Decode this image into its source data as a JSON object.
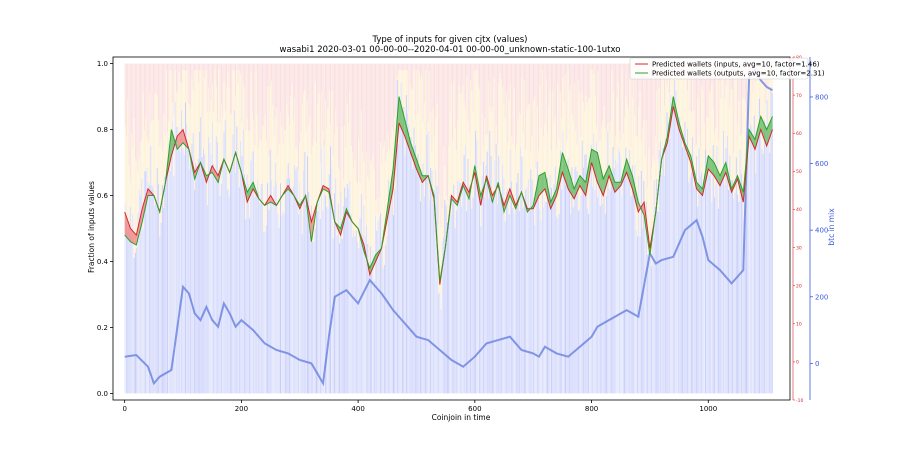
{
  "chart_data": {
    "type": "line",
    "title": "Type of inputs for given cjtx (values)",
    "subtitle": "wasabi1 2020-03-01 00-00-00--2020-04-01 00-00-00_unknown-static-100-1utxo",
    "xlabel": "Coinjoin in time",
    "ylabel": "Fraction of inputs values",
    "y2label": "btc in mix",
    "xlim": [
      -20,
      1140
    ],
    "ylim": [
      -0.02,
      1.02
    ],
    "y2lim": [
      -110,
      920
    ],
    "y3lim": [
      -10,
      80
    ],
    "x_ticks": [
      0,
      200,
      400,
      600,
      800,
      1000
    ],
    "y_ticks": [
      0.0,
      0.2,
      0.4,
      0.6,
      0.8,
      1.0
    ],
    "y2_ticks": [
      0,
      200,
      400,
      600,
      800
    ],
    "y3_ticks": [
      -10,
      0,
      10,
      20,
      30,
      40,
      50,
      60,
      70,
      80
    ],
    "legend_position": "top-right",
    "grid": false,
    "colors": {
      "inputs": "#d62728",
      "outputs": "#2ca02c",
      "btc": "#6f86e0",
      "fill_red": "#f08080",
      "fill_green": "#5cb85c",
      "bar_blue": "#9aa6f5",
      "bar_pink": "#f7c6c6",
      "bar_yellow": "#fbe3b0",
      "right_axis": "#d62728",
      "y2_axis": "#3b5bdb"
    },
    "series": [
      {
        "name": "Predicted wallets (inputs, avg=10, factor=1.46)",
        "x": [
          0,
          10,
          20,
          30,
          40,
          50,
          60,
          70,
          80,
          90,
          100,
          110,
          120,
          130,
          140,
          150,
          160,
          170,
          180,
          190,
          200,
          210,
          220,
          230,
          240,
          250,
          260,
          270,
          280,
          290,
          300,
          310,
          320,
          330,
          340,
          350,
          360,
          370,
          380,
          390,
          400,
          410,
          420,
          430,
          440,
          450,
          460,
          470,
          480,
          490,
          500,
          510,
          520,
          530,
          540,
          550,
          560,
          570,
          580,
          590,
          600,
          610,
          620,
          630,
          640,
          650,
          660,
          670,
          680,
          690,
          700,
          710,
          720,
          730,
          740,
          750,
          760,
          770,
          780,
          790,
          800,
          810,
          820,
          830,
          840,
          850,
          860,
          870,
          880,
          890,
          900,
          910,
          920,
          930,
          940,
          950,
          960,
          970,
          980,
          990,
          1000,
          1010,
          1020,
          1030,
          1040,
          1050,
          1060,
          1070,
          1080,
          1090,
          1100,
          1110
        ],
        "values": [
          0.55,
          0.5,
          0.48,
          0.56,
          0.62,
          0.6,
          0.55,
          0.64,
          0.72,
          0.78,
          0.8,
          0.74,
          0.67,
          0.7,
          0.64,
          0.69,
          0.66,
          0.71,
          0.67,
          0.73,
          0.67,
          0.58,
          0.62,
          0.59,
          0.57,
          0.6,
          0.57,
          0.6,
          0.63,
          0.6,
          0.56,
          0.6,
          0.52,
          0.58,
          0.63,
          0.62,
          0.52,
          0.48,
          0.55,
          0.52,
          0.5,
          0.45,
          0.36,
          0.4,
          0.44,
          0.53,
          0.62,
          0.82,
          0.78,
          0.73,
          0.68,
          0.64,
          0.66,
          0.59,
          0.33,
          0.45,
          0.6,
          0.58,
          0.64,
          0.61,
          0.67,
          0.57,
          0.66,
          0.6,
          0.63,
          0.57,
          0.62,
          0.57,
          0.61,
          0.56,
          0.56,
          0.6,
          0.62,
          0.56,
          0.6,
          0.67,
          0.62,
          0.59,
          0.63,
          0.6,
          0.7,
          0.64,
          0.6,
          0.66,
          0.61,
          0.63,
          0.67,
          0.62,
          0.55,
          0.58,
          0.44,
          0.55,
          0.71,
          0.76,
          0.87,
          0.8,
          0.75,
          0.7,
          0.62,
          0.6,
          0.68,
          0.66,
          0.63,
          0.67,
          0.61,
          0.65,
          0.58,
          0.78,
          0.74,
          0.8,
          0.75,
          0.8
        ]
      },
      {
        "name": "Predicted wallets (outputs, avg=10, factor=2.31)",
        "x": [
          0,
          10,
          20,
          30,
          40,
          50,
          60,
          70,
          80,
          90,
          100,
          110,
          120,
          130,
          140,
          150,
          160,
          170,
          180,
          190,
          200,
          210,
          220,
          230,
          240,
          250,
          260,
          270,
          280,
          290,
          300,
          310,
          320,
          330,
          340,
          350,
          360,
          370,
          380,
          390,
          400,
          410,
          420,
          430,
          440,
          450,
          460,
          470,
          480,
          490,
          500,
          510,
          520,
          530,
          540,
          550,
          560,
          570,
          580,
          590,
          600,
          610,
          620,
          630,
          640,
          650,
          660,
          670,
          680,
          690,
          700,
          710,
          720,
          730,
          740,
          750,
          760,
          770,
          780,
          790,
          800,
          810,
          820,
          830,
          840,
          850,
          860,
          870,
          880,
          890,
          900,
          910,
          920,
          930,
          940,
          950,
          960,
          970,
          980,
          990,
          1000,
          1010,
          1020,
          1030,
          1040,
          1050,
          1060,
          1070,
          1080,
          1090,
          1100,
          1110
        ],
        "values": [
          0.48,
          0.46,
          0.45,
          0.52,
          0.6,
          0.6,
          0.55,
          0.64,
          0.8,
          0.74,
          0.76,
          0.74,
          0.65,
          0.7,
          0.66,
          0.67,
          0.64,
          0.71,
          0.67,
          0.73,
          0.67,
          0.61,
          0.64,
          0.59,
          0.57,
          0.58,
          0.57,
          0.6,
          0.62,
          0.6,
          0.57,
          0.6,
          0.46,
          0.58,
          0.62,
          0.61,
          0.52,
          0.5,
          0.56,
          0.52,
          0.5,
          0.43,
          0.38,
          0.42,
          0.44,
          0.56,
          0.68,
          0.9,
          0.83,
          0.76,
          0.71,
          0.66,
          0.66,
          0.6,
          0.34,
          0.45,
          0.59,
          0.57,
          0.63,
          0.59,
          0.69,
          0.6,
          0.65,
          0.58,
          0.64,
          0.55,
          0.6,
          0.56,
          0.61,
          0.55,
          0.57,
          0.66,
          0.67,
          0.58,
          0.62,
          0.73,
          0.68,
          0.62,
          0.66,
          0.64,
          0.74,
          0.73,
          0.65,
          0.69,
          0.64,
          0.64,
          0.71,
          0.66,
          0.58,
          0.54,
          0.42,
          0.55,
          0.71,
          0.78,
          0.9,
          0.82,
          0.76,
          0.72,
          0.64,
          0.62,
          0.72,
          0.7,
          0.66,
          0.7,
          0.62,
          0.66,
          0.61,
          0.8,
          0.77,
          0.84,
          0.8,
          0.84
        ]
      },
      {
        "name": "btc in mix",
        "axis": "right",
        "x": [
          0,
          20,
          40,
          50,
          60,
          80,
          100,
          110,
          120,
          130,
          140,
          150,
          160,
          170,
          180,
          190,
          200,
          220,
          240,
          260,
          280,
          300,
          320,
          340,
          350,
          360,
          380,
          400,
          420,
          440,
          460,
          480,
          500,
          520,
          540,
          560,
          580,
          600,
          620,
          640,
          660,
          680,
          700,
          710,
          720,
          740,
          760,
          780,
          800,
          810,
          820,
          840,
          860,
          880,
          900,
          910,
          920,
          940,
          960,
          980,
          990,
          1000,
          1020,
          1040,
          1060,
          1070,
          1080,
          1090,
          1100,
          1110
        ],
        "values": [
          20,
          25,
          -10,
          -60,
          -40,
          -20,
          230,
          210,
          150,
          130,
          170,
          130,
          110,
          180,
          150,
          110,
          130,
          100,
          60,
          40,
          30,
          10,
          0,
          -60,
          80,
          200,
          220,
          180,
          250,
          210,
          160,
          120,
          80,
          70,
          40,
          10,
          -10,
          20,
          60,
          70,
          80,
          40,
          30,
          20,
          50,
          30,
          20,
          50,
          80,
          110,
          120,
          140,
          160,
          140,
          330,
          300,
          310,
          320,
          400,
          430,
          380,
          310,
          280,
          240,
          280,
          860,
          880,
          850,
          830,
          820
        ]
      }
    ]
  }
}
